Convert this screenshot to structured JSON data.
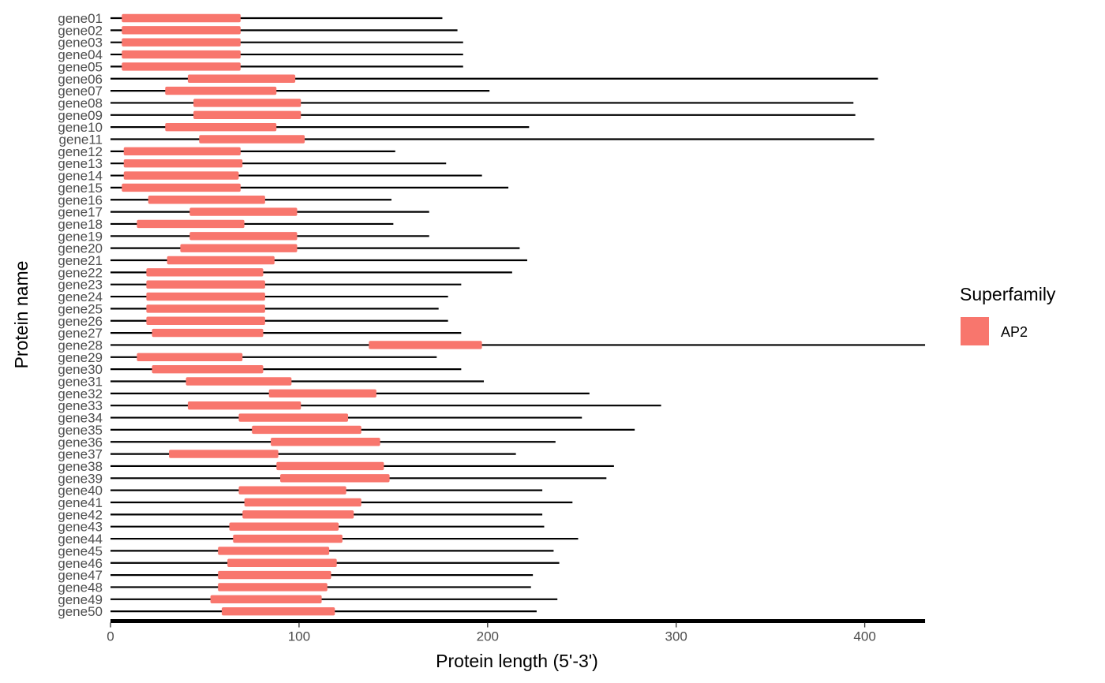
{
  "chart_data": {
    "type": "bar",
    "subtype": "protein-domain-map",
    "xlabel": "Protein length (5'-3')",
    "ylabel": "Protein name",
    "xlim": [
      0,
      432
    ],
    "xticks": [
      0,
      100,
      200,
      300,
      400
    ],
    "grid": false,
    "legend": {
      "title": "Superfamily",
      "position": "right",
      "entries": [
        {
          "label": "AP2",
          "color": "#F8766D"
        }
      ]
    },
    "line_color": "#000000",
    "domain_color": "#F8766D",
    "proteins": [
      {
        "name": "gene01",
        "length": 176,
        "domain_start": 6,
        "domain_end": 69
      },
      {
        "name": "gene02",
        "length": 184,
        "domain_start": 6,
        "domain_end": 69
      },
      {
        "name": "gene03",
        "length": 187,
        "domain_start": 6,
        "domain_end": 69
      },
      {
        "name": "gene04",
        "length": 187,
        "domain_start": 6,
        "domain_end": 69
      },
      {
        "name": "gene05",
        "length": 187,
        "domain_start": 6,
        "domain_end": 69
      },
      {
        "name": "gene06",
        "length": 407,
        "domain_start": 41,
        "domain_end": 98
      },
      {
        "name": "gene07",
        "length": 201,
        "domain_start": 29,
        "domain_end": 88
      },
      {
        "name": "gene08",
        "length": 394,
        "domain_start": 44,
        "domain_end": 101
      },
      {
        "name": "gene09",
        "length": 395,
        "domain_start": 44,
        "domain_end": 101
      },
      {
        "name": "gene10",
        "length": 222,
        "domain_start": 29,
        "domain_end": 88
      },
      {
        "name": "gene11",
        "length": 405,
        "domain_start": 47,
        "domain_end": 103
      },
      {
        "name": "gene12",
        "length": 151,
        "domain_start": 7,
        "domain_end": 69
      },
      {
        "name": "gene13",
        "length": 178,
        "domain_start": 7,
        "domain_end": 70
      },
      {
        "name": "gene14",
        "length": 197,
        "domain_start": 7,
        "domain_end": 68
      },
      {
        "name": "gene15",
        "length": 211,
        "domain_start": 6,
        "domain_end": 69
      },
      {
        "name": "gene16",
        "length": 149,
        "domain_start": 20,
        "domain_end": 82
      },
      {
        "name": "gene17",
        "length": 169,
        "domain_start": 42,
        "domain_end": 99
      },
      {
        "name": "gene18",
        "length": 150,
        "domain_start": 14,
        "domain_end": 71
      },
      {
        "name": "gene19",
        "length": 169,
        "domain_start": 42,
        "domain_end": 99
      },
      {
        "name": "gene20",
        "length": 217,
        "domain_start": 37,
        "domain_end": 99
      },
      {
        "name": "gene21",
        "length": 221,
        "domain_start": 30,
        "domain_end": 87
      },
      {
        "name": "gene22",
        "length": 213,
        "domain_start": 19,
        "domain_end": 81
      },
      {
        "name": "gene23",
        "length": 186,
        "domain_start": 19,
        "domain_end": 82
      },
      {
        "name": "gene24",
        "length": 179,
        "domain_start": 19,
        "domain_end": 82
      },
      {
        "name": "gene25",
        "length": 174,
        "domain_start": 19,
        "domain_end": 82
      },
      {
        "name": "gene26",
        "length": 179,
        "domain_start": 19,
        "domain_end": 82
      },
      {
        "name": "gene27",
        "length": 186,
        "domain_start": 22,
        "domain_end": 81
      },
      {
        "name": "gene28",
        "length": 432,
        "domain_start": 137,
        "domain_end": 197
      },
      {
        "name": "gene29",
        "length": 173,
        "domain_start": 14,
        "domain_end": 70
      },
      {
        "name": "gene30",
        "length": 186,
        "domain_start": 22,
        "domain_end": 81
      },
      {
        "name": "gene31",
        "length": 198,
        "domain_start": 40,
        "domain_end": 96
      },
      {
        "name": "gene32",
        "length": 254,
        "domain_start": 84,
        "domain_end": 141
      },
      {
        "name": "gene33",
        "length": 292,
        "domain_start": 41,
        "domain_end": 101
      },
      {
        "name": "gene34",
        "length": 250,
        "domain_start": 68,
        "domain_end": 126
      },
      {
        "name": "gene35",
        "length": 278,
        "domain_start": 75,
        "domain_end": 133
      },
      {
        "name": "gene36",
        "length": 236,
        "domain_start": 85,
        "domain_end": 143
      },
      {
        "name": "gene37",
        "length": 215,
        "domain_start": 31,
        "domain_end": 89
      },
      {
        "name": "gene38",
        "length": 267,
        "domain_start": 88,
        "domain_end": 145
      },
      {
        "name": "gene39",
        "length": 263,
        "domain_start": 90,
        "domain_end": 148
      },
      {
        "name": "gene40",
        "length": 229,
        "domain_start": 68,
        "domain_end": 125
      },
      {
        "name": "gene41",
        "length": 245,
        "domain_start": 71,
        "domain_end": 133
      },
      {
        "name": "gene42",
        "length": 229,
        "domain_start": 70,
        "domain_end": 129
      },
      {
        "name": "gene43",
        "length": 230,
        "domain_start": 63,
        "domain_end": 121
      },
      {
        "name": "gene44",
        "length": 248,
        "domain_start": 65,
        "domain_end": 123
      },
      {
        "name": "gene45",
        "length": 235,
        "domain_start": 57,
        "domain_end": 116
      },
      {
        "name": "gene46",
        "length": 238,
        "domain_start": 62,
        "domain_end": 120
      },
      {
        "name": "gene47",
        "length": 224,
        "domain_start": 57,
        "domain_end": 117
      },
      {
        "name": "gene48",
        "length": 223,
        "domain_start": 57,
        "domain_end": 115
      },
      {
        "name": "gene49",
        "length": 237,
        "domain_start": 53,
        "domain_end": 112
      },
      {
        "name": "gene50",
        "length": 226,
        "domain_start": 59,
        "domain_end": 119
      }
    ]
  }
}
